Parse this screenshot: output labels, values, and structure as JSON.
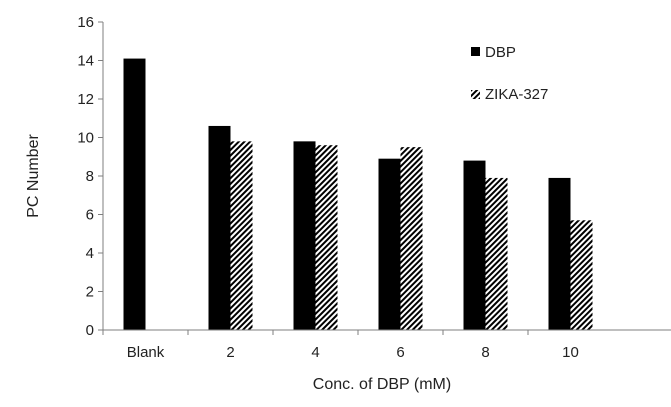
{
  "chart_data": {
    "type": "bar",
    "categories": [
      "Blank",
      "2",
      "4",
      "6",
      "8",
      "10"
    ],
    "series": [
      {
        "name": "DBP",
        "values": [
          14.1,
          10.6,
          9.8,
          8.9,
          8.8,
          7.9
        ],
        "fill": "solid",
        "color": "#000000"
      },
      {
        "name": "ZIKA-327",
        "values": [
          null,
          9.8,
          9.6,
          9.5,
          7.9,
          5.7
        ],
        "fill": "diagonal-hatch",
        "color": "#000000"
      }
    ],
    "xlabel": "Conc. of DBP (mM)",
    "ylabel": "PC Number",
    "ylim": [
      0,
      16
    ],
    "yticks": [
      0,
      2,
      4,
      6,
      8,
      10,
      12,
      14,
      16
    ],
    "grid": false,
    "legend_position": "top-right"
  }
}
